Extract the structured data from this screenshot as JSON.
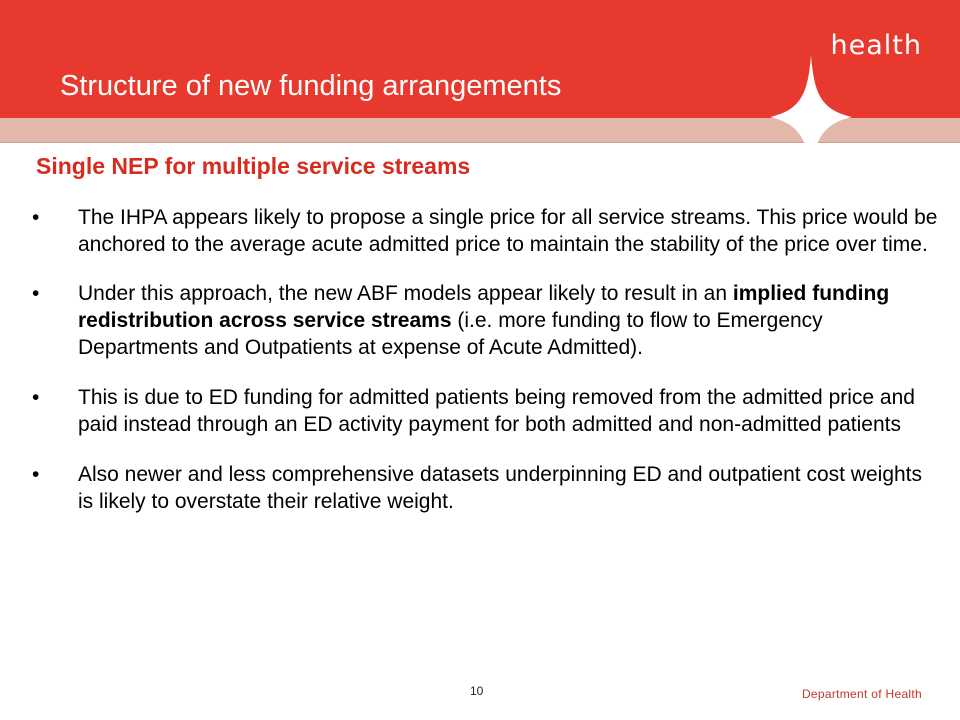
{
  "header": {
    "brand": "health",
    "title": "Structure of new funding arrangements"
  },
  "subtitle": "Single NEP for multiple service streams",
  "bullets": [
    {
      "marker": "•",
      "text": "The IHPA appears likely to propose a single price for all service streams. This price would be anchored to the average acute admitted price to maintain the stability of the price over time."
    },
    {
      "marker": "•",
      "text_before": "Under this approach, the new ABF models appear likely to result in an ",
      "text_bold": "implied funding redistribution across service streams",
      "text_after": " (i.e. more funding to flow to Emergency Departments and Outpatients at expense of Acute Admitted)."
    },
    {
      "marker": "•",
      "text": "This is due to ED funding for admitted patients being removed from the admitted price and paid instead through an ED activity payment for both admitted and non-admitted patients"
    },
    {
      "marker": "•",
      "text": "Also newer and less comprehensive datasets underpinning ED and outpatient cost weights is likely to overstate their relative weight."
    }
  ],
  "footer": {
    "page_number": "10",
    "department": "Department of Health"
  },
  "colors": {
    "banner": "#e8392e",
    "subtitle": "#d72b1f",
    "band": "#e4b7ab"
  }
}
